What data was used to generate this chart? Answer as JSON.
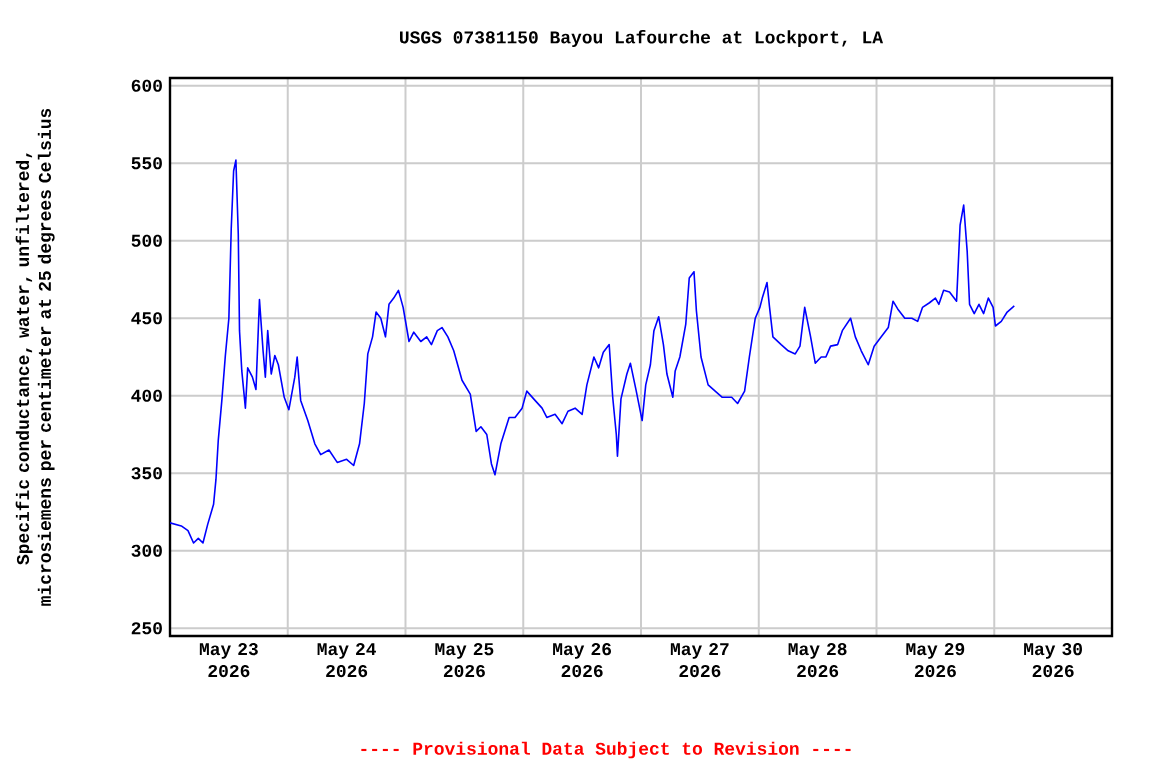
{
  "chart_data": {
    "type": "line",
    "title": "USGS 07381150 Bayou Lafourche at Lockport, LA",
    "ylabel": "Specific conductance, water, unfiltered, microsiemens per centimeter at 25 degrees Celsius",
    "annotations": [
      "---- Provisional Data Subject to Revision ----"
    ],
    "xlim": [
      "2026-05-23T00:00",
      "2026-05-31T00:00"
    ],
    "xticks": [
      {
        "value": "2026-05-23T12:00",
        "label": "May 23 2026"
      },
      {
        "value": "2026-05-24T00:00",
        "label": null
      },
      {
        "value": "2026-05-24T12:00",
        "label": "May 24 2026"
      },
      {
        "value": "2026-05-25T00:00",
        "label": null
      },
      {
        "value": "2026-05-25T12:00",
        "label": "May 25 2026"
      },
      {
        "value": "2026-05-26T00:00",
        "label": null
      },
      {
        "value": "2026-05-26T12:00",
        "label": "May 26 2026"
      },
      {
        "value": "2026-05-27T00:00",
        "label": null
      },
      {
        "value": "2026-05-27T12:00",
        "label": "May 27 2026"
      },
      {
        "value": "2026-05-28T00:00",
        "label": null
      },
      {
        "value": "2026-05-28T12:00",
        "label": "May 28 2026"
      },
      {
        "value": "2026-05-29T00:00",
        "label": null
      },
      {
        "value": "2026-05-29T12:00",
        "label": "May 29 2026"
      },
      {
        "value": "2026-05-30T00:00",
        "label": null
      },
      {
        "value": "2026-05-30T12:00",
        "label": "May 30 2026"
      }
    ],
    "ylim": [
      245,
      605
    ],
    "yticks": [
      250,
      300,
      350,
      400,
      450,
      500,
      550,
      600
    ],
    "grid": true,
    "marker": "none",
    "line_style": "solid",
    "series": [
      {
        "color": "#0000ff",
        "x": [
          "2026-05-23T00:00",
          "2026-05-23T02:18",
          "2026-05-23T03:40",
          "2026-05-23T04:48",
          "2026-05-23T05:46",
          "2026-05-23T06:43",
          "2026-05-23T07:41",
          "2026-05-23T08:53",
          "2026-05-23T09:22",
          "2026-05-23T09:50",
          "2026-05-23T10:34",
          "2026-05-23T11:17",
          "2026-05-23T12:00",
          "2026-05-23T12:29",
          "2026-05-23T12:58",
          "2026-05-23T13:26",
          "2026-05-23T13:55",
          "2026-05-23T14:10",
          "2026-05-23T14:38",
          "2026-05-23T15:22",
          "2026-05-23T15:50",
          "2026-05-23T16:48",
          "2026-05-23T17:31",
          "2026-05-23T18:14",
          "2026-05-23T18:58",
          "2026-05-23T19:26",
          "2026-05-23T19:55",
          "2026-05-23T20:38",
          "2026-05-23T21:22",
          "2026-05-23T22:05",
          "2026-05-23T23:17",
          "2026-05-24T00:14",
          "2026-05-24T01:26",
          "2026-05-24T01:55",
          "2026-05-24T02:38",
          "2026-05-24T04:05",
          "2026-05-24T05:31",
          "2026-05-24T06:43",
          "2026-05-24T08:24",
          "2026-05-24T10:05",
          "2026-05-24T12:00",
          "2026-05-24T13:26",
          "2026-05-24T14:38",
          "2026-05-24T15:36",
          "2026-05-24T16:19",
          "2026-05-24T17:17",
          "2026-05-24T18:00",
          "2026-05-24T18:58",
          "2026-05-24T19:55",
          "2026-05-24T20:38",
          "2026-05-24T21:36",
          "2026-05-24T22:34",
          "2026-05-24T23:31",
          "2026-05-25T00:43",
          "2026-05-25T01:41",
          "2026-05-25T03:07",
          "2026-05-25T04:19",
          "2026-05-25T05:17",
          "2026-05-25T06:29",
          "2026-05-25T07:26",
          "2026-05-25T08:38",
          "2026-05-25T09:50",
          "2026-05-25T11:31",
          "2026-05-25T13:12",
          "2026-05-25T14:24",
          "2026-05-25T15:22",
          "2026-05-25T16:34",
          "2026-05-25T17:31",
          "2026-05-25T18:14",
          "2026-05-25T19:26",
          "2026-05-25T21:07",
          "2026-05-25T22:19",
          "2026-05-25T23:46",
          "2026-05-26T00:43",
          "2026-05-26T02:24",
          "2026-05-26T03:50",
          "2026-05-26T04:48",
          "2026-05-26T06:29",
          "2026-05-26T07:55",
          "2026-05-26T09:07",
          "2026-05-26T10:34",
          "2026-05-26T12:00",
          "2026-05-26T12:58",
          "2026-05-26T14:24",
          "2026-05-26T15:22",
          "2026-05-26T16:19",
          "2026-05-26T17:31",
          "2026-05-26T18:14",
          "2026-05-26T18:58",
          "2026-05-26T19:12",
          "2026-05-26T19:55",
          "2026-05-26T21:07",
          "2026-05-26T21:50",
          "2026-05-26T23:02",
          "2026-05-27T00:14",
          "2026-05-27T00:58",
          "2026-05-27T01:55",
          "2026-05-27T02:38",
          "2026-05-27T03:36",
          "2026-05-27T04:34",
          "2026-05-27T05:17",
          "2026-05-27T06:29",
          "2026-05-27T06:58",
          "2026-05-27T07:55",
          "2026-05-27T09:07",
          "2026-05-27T09:50",
          "2026-05-27T10:48",
          "2026-05-27T11:17",
          "2026-05-27T12:14",
          "2026-05-27T13:41",
          "2026-05-27T15:07",
          "2026-05-27T16:34",
          "2026-05-27T18:29",
          "2026-05-27T19:41",
          "2026-05-27T21:07",
          "2026-05-27T22:05",
          "2026-05-27T23:17",
          "2026-05-28T00:14",
          "2026-05-28T00:43",
          "2026-05-28T01:41",
          "2026-05-28T02:10",
          "2026-05-28T02:53",
          "2026-05-28T04:34",
          "2026-05-28T06:00",
          "2026-05-28T07:26",
          "2026-05-28T08:24",
          "2026-05-28T09:22",
          "2026-05-28T10:34",
          "2026-05-28T11:31",
          "2026-05-28T12:43",
          "2026-05-28T13:41",
          "2026-05-28T14:38",
          "2026-05-28T16:05",
          "2026-05-28T17:02",
          "2026-05-28T18:43",
          "2026-05-28T19:41",
          "2026-05-28T20:53",
          "2026-05-28T22:19",
          "2026-05-28T23:31",
          "2026-05-29T00:58",
          "2026-05-29T02:24",
          "2026-05-29T03:22",
          "2026-05-29T04:19",
          "2026-05-29T05:46",
          "2026-05-29T07:12",
          "2026-05-29T08:24",
          "2026-05-29T09:22",
          "2026-05-29T10:48",
          "2026-05-29T12:00",
          "2026-05-29T12:43",
          "2026-05-29T13:41",
          "2026-05-29T14:53",
          "2026-05-29T16:19",
          "2026-05-29T17:02",
          "2026-05-29T17:46",
          "2026-05-29T18:29",
          "2026-05-29T18:58",
          "2026-05-29T19:55",
          "2026-05-29T20:53",
          "2026-05-29T21:50",
          "2026-05-29T22:48",
          "2026-05-29T23:46",
          "2026-05-30T00:14",
          "2026-05-30T01:26",
          "2026-05-30T02:38",
          "2026-05-30T04:05"
        ],
        "values": [
          318,
          316,
          313,
          305,
          308,
          305,
          317,
          330,
          346,
          371,
          397,
          426,
          450,
          508,
          545,
          552,
          504,
          442,
          416,
          392,
          418,
          412,
          404,
          462,
          429,
          412,
          442,
          414,
          426,
          420,
          399,
          391,
          412,
          425,
          397,
          384,
          369,
          362,
          365,
          357,
          359,
          355,
          369,
          395,
          427,
          438,
          454,
          450,
          438,
          459,
          463,
          468,
          457,
          435,
          441,
          435,
          438,
          433,
          442,
          444,
          438,
          429,
          410,
          401,
          377,
          380,
          375,
          356,
          349,
          369,
          386,
          386,
          392,
          403,
          397,
          392,
          386,
          388,
          382,
          390,
          392,
          388,
          407,
          425,
          418,
          428,
          433,
          399,
          375,
          361,
          398,
          414,
          421,
          403,
          384,
          407,
          420,
          442,
          451,
          433,
          414,
          399,
          416,
          425,
          446,
          476,
          480,
          455,
          425,
          407,
          403,
          399,
          399,
          395,
          403,
          425,
          450,
          457,
          463,
          473,
          458,
          438,
          433,
          429,
          427,
          432,
          457,
          438,
          421,
          425,
          425,
          432,
          433,
          442,
          450,
          438,
          429,
          420,
          432,
          438,
          444,
          461,
          456,
          450,
          450,
          448,
          457,
          460,
          463,
          459,
          468,
          467,
          461,
          510,
          523,
          493,
          459,
          453,
          459,
          453,
          463,
          457,
          445,
          448,
          454,
          458
        ]
      }
    ]
  }
}
